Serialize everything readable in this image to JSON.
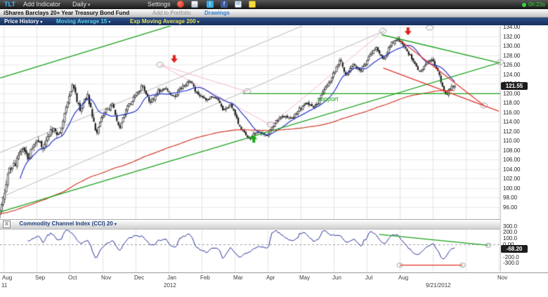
{
  "toolbar": {
    "symbol": "TLT",
    "add_indicator": "Add Indicator",
    "timeframe": "Daily",
    "settings": "Settings",
    "status": "0h:23s"
  },
  "glyphs": {
    "dropdown": "▾",
    "twitter": "t",
    "facebook": "f",
    "envelope": "✉"
  },
  "symbol_bar": {
    "fund_name": "iShares Barclays 20+ Year Treasury Bond Fund",
    "add_to_portfolio": "Add to Portfolio",
    "drawings": "Drawings"
  },
  "indicator_bar": {
    "price_history": "Price History",
    "moving_average": "Moving Average 15",
    "exp_moving_average": "Exp Moving Average 200"
  },
  "price_panel": {
    "last_price": "121.55",
    "axis_ticks": [
      "134.00",
      "132.00",
      "130.00",
      "128.00",
      "126.00",
      "124.00",
      "122.00",
      "120.00",
      "118.00",
      "116.00",
      "114.00",
      "112.00",
      "110.00",
      "108.00",
      "106.00",
      "104.00",
      "102.00",
      "100.00",
      "98.00",
      "96.00"
    ]
  },
  "cci_panel": {
    "title": "Commodity Channel Index (CCI) 20",
    "close_glyph": "X",
    "last_value": "-68.20",
    "axis_ticks": [
      "300.0",
      "200.0",
      "100.0",
      "0.00",
      "-100.0",
      "-200.0",
      "-300.0"
    ]
  },
  "timeline": {
    "months": [
      {
        "m": 0,
        "label": "Aug"
      },
      {
        "m": 1,
        "label": "Sep"
      },
      {
        "m": 2,
        "label": "Oct"
      },
      {
        "m": 3,
        "label": "Nov"
      },
      {
        "m": 4,
        "label": "Dec"
      },
      {
        "m": 5,
        "label": "Jan"
      },
      {
        "m": 6,
        "label": "Feb"
      },
      {
        "m": 7,
        "label": "Mar"
      },
      {
        "m": 8,
        "label": "Apr"
      },
      {
        "m": 9,
        "label": "May"
      },
      {
        "m": 10,
        "label": "Jun"
      },
      {
        "m": 11,
        "label": "Jul"
      },
      {
        "m": 12,
        "label": "Aug"
      },
      {
        "m": 15,
        "label": "Nov"
      }
    ],
    "start_year": "11",
    "year_label": "2012",
    "last_date": "9/21/2012"
  },
  "chart_data": [
    {
      "type": "candlestick",
      "symbol": "TLT",
      "timeframe": "Daily",
      "title": "iShares Barclays 20+ Year Treasury Bond Fund",
      "ylim": [
        94.5,
        134.9
      ],
      "y_tick_step": 2,
      "y_tick_range": [
        96,
        134
      ],
      "x_range": [
        "Aug 2011",
        "Nov 2012"
      ],
      "last_close": 121.55,
      "price_anchors": [
        [
          -0.15,
          95.2
        ],
        [
          0.0,
          97.5
        ],
        [
          0.15,
          103.5
        ],
        [
          0.35,
          105.0
        ],
        [
          0.55,
          108.5
        ],
        [
          0.75,
          106.5
        ],
        [
          1.0,
          110.0
        ],
        [
          1.2,
          108.5
        ],
        [
          1.45,
          112.5
        ],
        [
          1.7,
          111.0
        ],
        [
          1.95,
          118.5
        ],
        [
          2.1,
          122.0
        ],
        [
          2.3,
          116.5
        ],
        [
          2.55,
          119.5
        ],
        [
          2.8,
          111.5
        ],
        [
          3.05,
          116.0
        ],
        [
          3.3,
          117.5
        ],
        [
          3.5,
          112.5
        ],
        [
          3.75,
          117.0
        ],
        [
          3.95,
          119.0
        ],
        [
          4.2,
          121.5
        ],
        [
          4.45,
          118.0
        ],
        [
          4.7,
          120.5
        ],
        [
          4.95,
          121.0
        ],
        [
          5.15,
          119.0
        ],
        [
          5.4,
          121.5
        ],
        [
          5.65,
          122.5
        ],
        [
          5.9,
          119.5
        ],
        [
          6.15,
          118.5
        ],
        [
          6.4,
          119.5
        ],
        [
          6.65,
          116.5
        ],
        [
          6.9,
          117.5
        ],
        [
          7.15,
          113.0
        ],
        [
          7.45,
          110.5
        ],
        [
          7.7,
          112.0
        ],
        [
          7.95,
          111.0
        ],
        [
          8.2,
          113.5
        ],
        [
          8.45,
          115.5
        ],
        [
          8.7,
          114.5
        ],
        [
          8.95,
          116.5
        ],
        [
          9.2,
          118.0
        ],
        [
          9.45,
          117.0
        ],
        [
          9.7,
          120.5
        ],
        [
          9.95,
          123.5
        ],
        [
          10.2,
          127.0
        ],
        [
          10.35,
          123.5
        ],
        [
          10.6,
          126.0
        ],
        [
          10.8,
          124.5
        ],
        [
          11.05,
          127.5
        ],
        [
          11.3,
          129.5
        ],
        [
          11.5,
          127.0
        ],
        [
          11.75,
          130.5
        ],
        [
          11.95,
          131.5
        ],
        [
          12.15,
          129.5
        ],
        [
          12.4,
          127.0
        ],
        [
          12.6,
          124.5
        ],
        [
          12.8,
          126.5
        ],
        [
          13.0,
          127.0
        ],
        [
          13.2,
          123.5
        ],
        [
          13.4,
          119.5
        ],
        [
          13.55,
          121.0
        ],
        [
          13.67,
          121.55
        ]
      ],
      "series": [
        {
          "name": "Moving Average 15",
          "kind": "sma",
          "period": 15,
          "color": "#2433c8"
        },
        {
          "name": "Exp Moving Average 200",
          "kind": "ema",
          "period": 200,
          "color": "#d23a2e"
        }
      ],
      "annotations": {
        "colors": {
          "green": "#18a018",
          "red": "#e23028",
          "gray": "#b8b8b8",
          "pink": "#f4b8cc"
        },
        "lines": [
          {
            "m1": -0.1,
            "p1": 95.0,
            "m2": 15.1,
            "p2": 126.6,
            "color": "green",
            "w": 1.3
          },
          {
            "m1": -0.1,
            "p1": 123.2,
            "m2": 5.4,
            "p2": 134.9,
            "color": "green",
            "w": 1.3
          },
          {
            "m1": 7.25,
            "p1": 119.9,
            "m2": 15.05,
            "p2": 119.9,
            "color": "green",
            "w": 1.4
          },
          {
            "m1": 11.45,
            "p1": 132.3,
            "m2": 15.0,
            "p2": 126.4,
            "color": "green",
            "w": 1.3
          },
          {
            "m1": 11.5,
            "p1": 125.3,
            "m2": 15.0,
            "p2": 116.2,
            "color": "red",
            "w": 1.2
          },
          {
            "m1": 12.0,
            "p1": 131.2,
            "m2": 14.55,
            "p2": 117.4,
            "color": "red",
            "w": 1.2
          },
          {
            "m1": -0.1,
            "p1": 98.0,
            "m2": 11.55,
            "p2": 133.2,
            "color": "gray",
            "w": 1
          },
          {
            "m1": -0.1,
            "p1": 107.5,
            "m2": 9.3,
            "p2": 134.9,
            "color": "gray",
            "w": 1
          },
          {
            "m1": 4.74,
            "p1": 126.0,
            "m2": 8.09,
            "p2": 113.3,
            "color": "pink",
            "w": 1
          },
          {
            "m1": 8.09,
            "p1": 113.3,
            "m2": 11.49,
            "p2": 133.0,
            "color": "pink",
            "w": 1
          },
          {
            "m1": 4.74,
            "p1": 126.0,
            "m2": 7.38,
            "p2": 120.3,
            "color": "pink",
            "w": 1
          }
        ],
        "circles": [
          [
            4.74,
            126.0
          ],
          [
            7.38,
            120.4
          ],
          [
            8.09,
            113.4
          ],
          [
            11.49,
            133.1
          ],
          [
            12.91,
            133.8
          ],
          [
            15.04,
            126.5
          ],
          [
            14.55,
            117.4
          ]
        ],
        "arrows": [
          {
            "m": 5.17,
            "p": 126.4,
            "dir": "down",
            "color": "#e02020"
          },
          {
            "m": 12.25,
            "p": 132.2,
            "dir": "down",
            "color": "#e02020"
          },
          {
            "m": 7.58,
            "p": 111.2,
            "dir": "up",
            "color": "#16a816"
          }
        ],
        "text": {
          "label": "support",
          "m": 9.5,
          "p": 118.6,
          "color": "#17a017"
        }
      }
    },
    {
      "type": "line",
      "name": "Commodity Channel Index (CCI) 20",
      "period": 20,
      "color": "#232d96",
      "ylim": [
        -430,
        400
      ],
      "y_ticks": [
        300,
        200,
        100,
        0,
        -100,
        -200,
        -300
      ],
      "zero_line": "dashed",
      "last_value": -68.2,
      "annotations": {
        "lines": [
          {
            "m1": 11.38,
            "v1": 160,
            "m2": 14.68,
            "v2": -15,
            "color": "green",
            "w": 1.3
          },
          {
            "m1": 12.0,
            "v1": -335,
            "m2": 13.9,
            "v2": -335,
            "color": "red",
            "w": 1.2
          }
        ],
        "circles": [
          [
            12.0,
            -335
          ],
          [
            13.9,
            -335
          ],
          [
            14.68,
            -15
          ]
        ]
      }
    }
  ]
}
